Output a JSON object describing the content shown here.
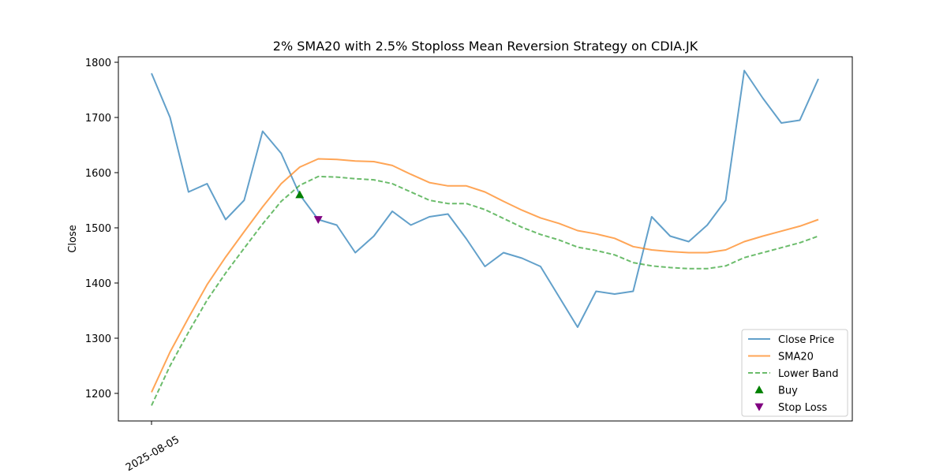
{
  "chart_data": {
    "type": "line",
    "title": "2% SMA20 with 2.5% Stoploss Mean Reversion Strategy on CDIA.JK",
    "ylabel": "Close",
    "xlabel": "",
    "x_tick_labels": [
      "2025-08-05"
    ],
    "x_tick_index": [
      0
    ],
    "ylim": [
      1150,
      1810
    ],
    "y_ticks": [
      1200,
      1300,
      1400,
      1500,
      1600,
      1700,
      1800
    ],
    "grid": false,
    "legend_position": "lower right",
    "series": [
      {
        "name": "Close Price",
        "color": "#1f77b4",
        "style": "solid",
        "values": [
          1780,
          1700,
          1565,
          1580,
          1515,
          1550,
          1675,
          1635,
          1560,
          1515,
          1505,
          1455,
          1485,
          1530,
          1505,
          1520,
          1525,
          1480,
          1430,
          1455,
          1445,
          1430,
          1375,
          1320,
          1385,
          1380,
          1385,
          1520,
          1485,
          1475,
          1505,
          1550,
          1785,
          1735,
          1690,
          1695,
          1770
        ]
      },
      {
        "name": "SMA20",
        "color": "#ff7f0e",
        "style": "solid",
        "values": [
          1202,
          1275,
          1337,
          1397,
          1447,
          1493,
          1538,
          1580,
          1610,
          1625,
          1624,
          1621,
          1620,
          1613,
          1597,
          1582,
          1576,
          1576,
          1565,
          1548,
          1532,
          1518,
          1508,
          1495,
          1489,
          1481,
          1466,
          1460,
          1457,
          1455,
          1455,
          1460,
          1475,
          1485,
          1494,
          1503,
          1515
        ]
      },
      {
        "name": "Lower Band",
        "color": "#2ca02c",
        "style": "dashed",
        "values": [
          1178,
          1250,
          1311,
          1369,
          1418,
          1463,
          1507,
          1548,
          1577,
          1593,
          1592,
          1589,
          1587,
          1580,
          1565,
          1550,
          1544,
          1544,
          1533,
          1517,
          1501,
          1488,
          1478,
          1465,
          1459,
          1451,
          1437,
          1431,
          1428,
          1426,
          1426,
          1431,
          1446,
          1455,
          1464,
          1473,
          1485
        ]
      }
    ],
    "markers": [
      {
        "name": "Buy",
        "symbol": "triangle-up",
        "color": "#008000",
        "x_index": 8,
        "y": 1560
      },
      {
        "name": "Stop Loss",
        "symbol": "triangle-down",
        "color": "#800080",
        "x_index": 9,
        "y": 1515
      }
    ]
  }
}
